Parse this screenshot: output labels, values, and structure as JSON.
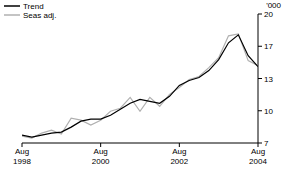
{
  "chart_data": {
    "type": "line",
    "y_label": "'000",
    "categories": [
      "Aug 1998",
      null,
      null,
      null,
      null,
      null,
      null,
      null,
      "Aug 2000",
      null,
      null,
      null,
      null,
      null,
      null,
      null,
      "Aug 2002",
      null,
      null,
      null,
      null,
      null,
      null,
      null,
      "Aug 2004"
    ],
    "series": [
      {
        "name": "Trend",
        "color": "#000000",
        "values": [
          7.8,
          7.6,
          7.8,
          8.0,
          8.1,
          8.6,
          9.2,
          9.4,
          9.4,
          9.8,
          10.4,
          11.0,
          11.4,
          11.2,
          11.0,
          11.7,
          12.8,
          13.3,
          13.6,
          14.3,
          15.4,
          17.1,
          17.9,
          15.8,
          14.7
        ]
      },
      {
        "name": "Seas adj.",
        "color": "#b0b0b0",
        "values": [
          7.7,
          7.5,
          8.0,
          8.3,
          7.9,
          9.5,
          9.3,
          8.8,
          9.3,
          10.2,
          10.5,
          11.6,
          10.2,
          11.6,
          10.7,
          11.9,
          12.6,
          13.4,
          13.7,
          14.6,
          15.6,
          17.8,
          18.0,
          15.3,
          14.8
        ]
      }
    ],
    "ylim": [
      7,
      20
    ],
    "yticks": [
      7,
      {
        "value": 10.25,
        "label": "10"
      },
      {
        "value": 13.5,
        "label": "13"
      },
      {
        "value": 16.75,
        "label": "17"
      },
      20
    ],
    "legend": "top-left",
    "grid": false
  }
}
